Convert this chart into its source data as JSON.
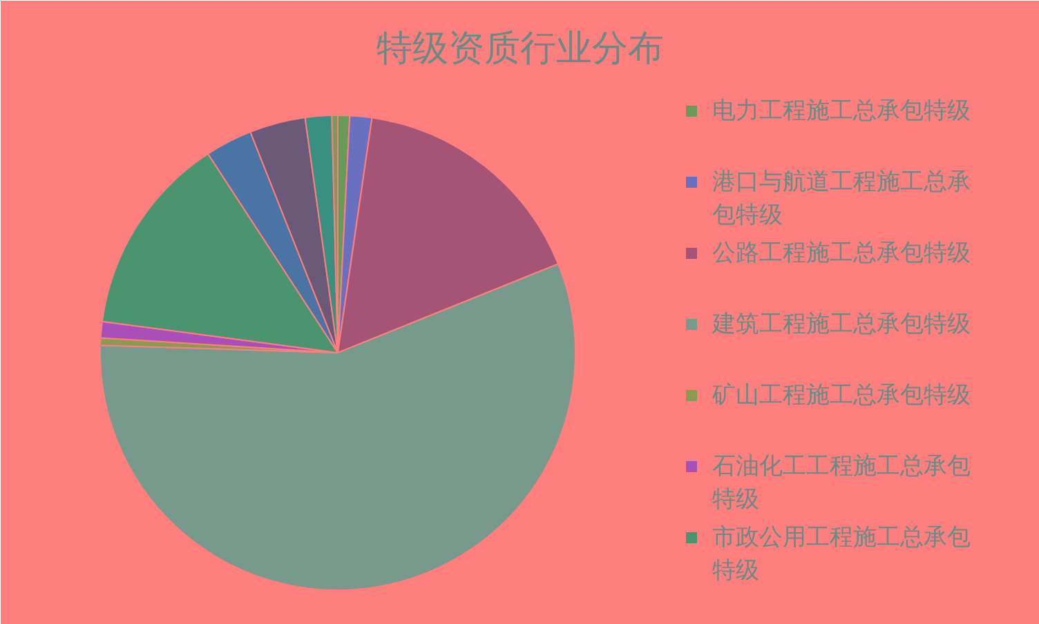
{
  "chart_data": {
    "type": "pie",
    "title": "特级资质行业分布",
    "categories": [
      "电力工程施工总承包特级",
      "港口与航道工程施工总承包特级",
      "公路工程施工总承包特级",
      "建筑工程施工总承包特级",
      "矿山工程施工总承包特级",
      "石油化工工程施工总承包特级",
      "市政公用工程施工总承包特级",
      null,
      null,
      null,
      null
    ],
    "values": [
      0.8,
      1.5,
      16.6,
      56.6,
      0.5,
      1.1,
      13.7,
      3.2,
      3.8,
      1.8,
      0.4
    ],
    "colors": [
      "#6a9a5a",
      "#6a70c0",
      "#a65475",
      "#789a8c",
      "#8a9a50",
      "#a850b8",
      "#4a9470",
      "#4a74a4",
      "#6a5a78",
      "#3a9080",
      "#7a9a60"
    ],
    "legend": "right"
  }
}
